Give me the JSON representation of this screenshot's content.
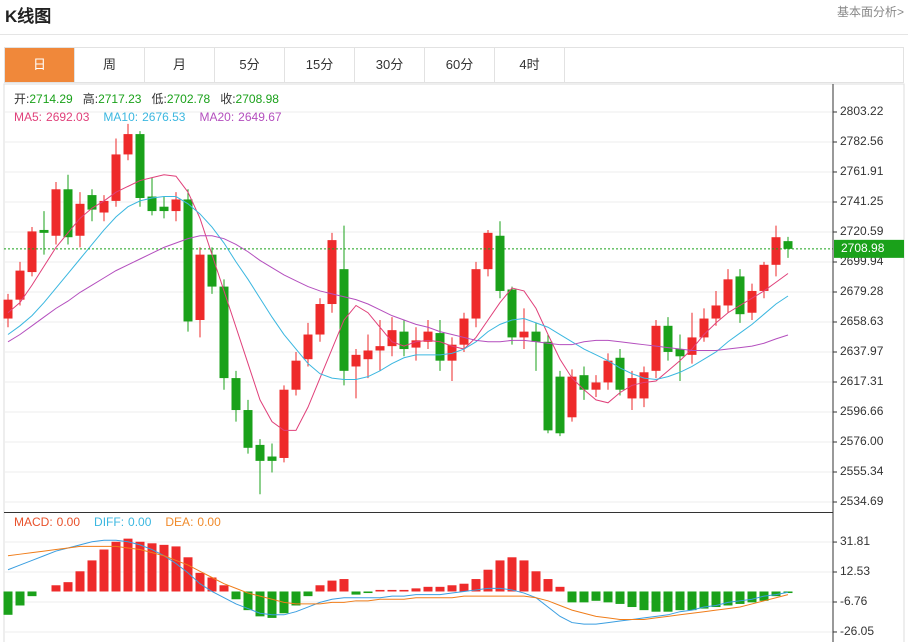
{
  "header": {
    "title": "K线图",
    "link": "基本面分析>"
  },
  "tabs": [
    "日",
    "周",
    "月",
    "5分",
    "15分",
    "30分",
    "60分",
    "4时"
  ],
  "active_tab": 0,
  "chart_data": [
    {
      "type": "candlestick",
      "ohlc_labels": [
        "开:",
        "高:",
        "低:",
        "收:"
      ],
      "up_color": "#ee2a2a",
      "down_color": "#1aa11a",
      "grid": true,
      "open": [
        2661,
        2674,
        2693,
        2722,
        2718,
        2750,
        2718,
        2746,
        2734,
        2742,
        2774,
        2788,
        2745,
        2738,
        2735,
        2743,
        2660,
        2705,
        2683,
        2620,
        2598,
        2574,
        2566,
        2565,
        2612,
        2633,
        2650,
        2671,
        2695,
        2628,
        2633,
        2639,
        2642,
        2652,
        2641,
        2645,
        2651,
        2632,
        2643,
        2661,
        2695,
        2718,
        2681,
        2648,
        2652,
        2645,
        2621,
        2593,
        2622,
        2612,
        2617,
        2634,
        2606,
        2606,
        2625,
        2656,
        2640,
        2636,
        2648,
        2661,
        2670,
        2690,
        2665,
        2680,
        2698,
        2714.29
      ],
      "close": [
        2674,
        2694,
        2721,
        2720,
        2750,
        2717,
        2740,
        2736,
        2742,
        2774,
        2788,
        2744,
        2735,
        2735,
        2743,
        2659,
        2705,
        2683,
        2620,
        2598,
        2572,
        2563,
        2563,
        2612,
        2632,
        2650,
        2671,
        2715,
        2625,
        2636,
        2639,
        2642,
        2653,
        2640,
        2646,
        2652,
        2632,
        2643,
        2661,
        2695,
        2720,
        2680,
        2648,
        2652,
        2645,
        2584,
        2582,
        2621,
        2612,
        2617,
        2632,
        2612,
        2620,
        2624,
        2656,
        2638,
        2635,
        2648,
        2661,
        2670,
        2688,
        2664,
        2680,
        2698,
        2717,
        2708.98
      ],
      "low": [
        2655,
        2670,
        2690,
        2705,
        2712,
        2712,
        2710,
        2728,
        2728,
        2738,
        2770,
        2738,
        2732,
        2730,
        2728,
        2652,
        2648,
        2678,
        2612,
        2590,
        2568,
        2540,
        2555,
        2562,
        2608,
        2628,
        2645,
        2665,
        2615,
        2606,
        2620,
        2625,
        2635,
        2635,
        2632,
        2640,
        2625,
        2618,
        2638,
        2655,
        2690,
        2675,
        2643,
        2640,
        2625,
        2582,
        2580,
        2590,
        2605,
        2607,
        2612,
        2608,
        2598,
        2600,
        2620,
        2632,
        2618,
        2630,
        2645,
        2656,
        2665,
        2658,
        2660,
        2675,
        2690,
        2702.78
      ],
      "high": [
        2678,
        2700,
        2724,
        2735,
        2755,
        2760,
        2748,
        2750,
        2746,
        2785,
        2795,
        2790,
        2758,
        2745,
        2748,
        2750,
        2710,
        2710,
        2688,
        2625,
        2605,
        2578,
        2575,
        2615,
        2638,
        2658,
        2675,
        2720,
        2725,
        2640,
        2650,
        2660,
        2662,
        2660,
        2655,
        2660,
        2660,
        2648,
        2665,
        2700,
        2722,
        2728,
        2683,
        2668,
        2658,
        2650,
        2625,
        2626,
        2628,
        2622,
        2637,
        2640,
        2625,
        2628,
        2660,
        2662,
        2650,
        2665,
        2668,
        2680,
        2695,
        2695,
        2685,
        2700,
        2725,
        2717.23
      ],
      "series": [
        {
          "name": "MA5:",
          "color": "#e0407a",
          "values": [
            2665,
            2672,
            2684,
            2697,
            2710,
            2720,
            2730,
            2737,
            2742,
            2748,
            2752,
            2756,
            2758,
            2760,
            2759,
            2748,
            2730,
            2705,
            2680,
            2655,
            2630,
            2605,
            2590,
            2584,
            2584,
            2600,
            2620,
            2640,
            2660,
            2670,
            2665,
            2655,
            2645,
            2642,
            2645,
            2646,
            2645,
            2642,
            2640,
            2648,
            2660,
            2672,
            2682,
            2680,
            2668,
            2650,
            2633,
            2620,
            2612,
            2605,
            2603,
            2610,
            2615,
            2617,
            2618,
            2625,
            2632,
            2640,
            2650,
            2658,
            2665,
            2670,
            2675,
            2680,
            2686,
            2692.03
          ]
        },
        {
          "name": "MA10:",
          "color": "#3bb7e0",
          "values": [
            2650,
            2656,
            2663,
            2672,
            2682,
            2692,
            2702,
            2712,
            2722,
            2731,
            2738,
            2742,
            2744,
            2745,
            2745,
            2740,
            2733,
            2724,
            2713,
            2700,
            2688,
            2675,
            2662,
            2650,
            2640,
            2630,
            2623,
            2620,
            2619,
            2619,
            2621,
            2625,
            2630,
            2634,
            2636,
            2636,
            2636,
            2637,
            2640,
            2645,
            2652,
            2657,
            2660,
            2661,
            2658,
            2655,
            2650,
            2645,
            2640,
            2636,
            2632,
            2627,
            2623,
            2620,
            2619,
            2621,
            2624,
            2628,
            2633,
            2638,
            2645,
            2651,
            2657,
            2664,
            2671,
            2676.53
          ]
        },
        {
          "name": "MA20:",
          "color": "#b44fbe",
          "values": [
            2645,
            2650,
            2656,
            2662,
            2668,
            2673,
            2679,
            2684,
            2689,
            2694,
            2698,
            2702,
            2706,
            2710,
            2713,
            2716,
            2718,
            2718,
            2716,
            2712,
            2707,
            2701,
            2696,
            2691,
            2687,
            2683,
            2680,
            2678,
            2676,
            2674,
            2671,
            2667,
            2663,
            2660,
            2657,
            2655,
            2652,
            2650,
            2648,
            2646,
            2645,
            2645,
            2646,
            2646,
            2645,
            2644,
            2643,
            2643,
            2645,
            2646,
            2646,
            2645,
            2644,
            2643,
            2642,
            2641,
            2640,
            2639,
            2639,
            2639,
            2640,
            2641,
            2642,
            2644,
            2647,
            2649.67
          ]
        }
      ],
      "ylim": [
        2527.8,
        2821.8
      ],
      "yticks": [
        2803.22,
        2782.56,
        2761.91,
        2741.25,
        2720.59,
        2699.94,
        2679.28,
        2658.63,
        2637.97,
        2617.31,
        2596.66,
        {
          "value": 2576,
          "label": "2576.00"
        },
        2555.34,
        2534.69
      ]
    },
    {
      "type": "macd",
      "legend": [
        {
          "name": "MACD:",
          "value": 0,
          "value_label": "0.00",
          "color": "#e8502a"
        },
        {
          "name": "DIFF:",
          "value": 0,
          "value_label": "0.00",
          "color": "#3bb7e0"
        },
        {
          "name": "DEA:",
          "value": 0,
          "value_label": "0.00",
          "color": "#f08a2a"
        }
      ],
      "up_color": "#ee2a2a",
      "down_color": "#1aa11a",
      "grid": true,
      "values": [
        -15,
        -9,
        -3,
        0,
        4,
        6,
        13,
        20,
        27,
        32,
        34,
        32,
        31,
        30,
        29,
        22,
        12,
        9,
        4,
        -5,
        -12,
        -16,
        -17,
        -14,
        -9,
        -3,
        4,
        7,
        8,
        -2,
        -1,
        1,
        1,
        1,
        2,
        3,
        3,
        4,
        5,
        8,
        14,
        20,
        22,
        20,
        13,
        8,
        3,
        -7,
        -7,
        -6,
        -7,
        -8,
        -10,
        -12,
        -13,
        -13,
        -12,
        -12,
        -11,
        -10,
        -9,
        -8,
        -7,
        -6,
        -3,
        -1
      ],
      "series": [
        {
          "name": "DIFF",
          "color": "#3a9ee0",
          "values": [
            14,
            17,
            20,
            23,
            26,
            28,
            30,
            32,
            33,
            33,
            32,
            30,
            27,
            23,
            18,
            12,
            5,
            0,
            -4,
            -8,
            -11,
            -14,
            -15,
            -15,
            -13,
            -10,
            -7,
            -5,
            -4,
            -4,
            -4,
            -4,
            -3,
            -3,
            -2,
            -2,
            -2,
            -1,
            0,
            1,
            2,
            2,
            1,
            -1,
            -4,
            -10,
            -16,
            -20,
            -21,
            -21,
            -20,
            -19,
            -18,
            -17,
            -16,
            -15,
            -13,
            -12,
            -10,
            -9,
            -7,
            -6,
            -5,
            -3,
            -2,
            -0.5
          ]
        },
        {
          "name": "DEA",
          "color": "#f07d1a",
          "values": [
            23,
            24,
            25,
            26,
            27,
            28,
            29,
            29,
            29,
            29,
            28,
            27,
            25,
            23,
            20,
            17,
            13,
            9,
            5,
            2,
            -1,
            -3,
            -5,
            -7,
            -8,
            -8,
            -8,
            -7,
            -7,
            -6,
            -6,
            -5,
            -5,
            -5,
            -4,
            -4,
            -4,
            -4,
            -3,
            -3,
            -3,
            -3,
            -3,
            -3,
            -4,
            -6,
            -9,
            -12,
            -14,
            -16,
            -17,
            -18,
            -18,
            -18,
            -17,
            -16,
            -15,
            -14,
            -13,
            -12,
            -11,
            -10,
            -8,
            -6,
            -4,
            -2
          ]
        }
      ],
      "ylim": [
        -32.5,
        50.5
      ],
      "yticks": [
        31.81,
        12.53,
        -6.76,
        -26.05
      ]
    }
  ]
}
